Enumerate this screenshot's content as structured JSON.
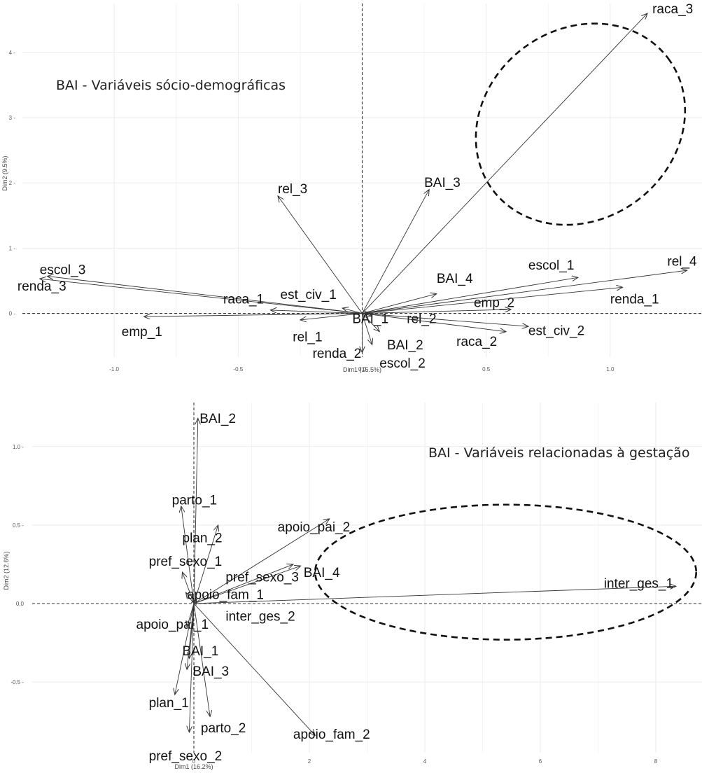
{
  "chart_data": [
    {
      "type": "scatter",
      "title": "BAI - Variáveis sócio-demográficas",
      "xlabel": "Dim1 (15.5%)",
      "ylabel": "Dim2 (9.5%)",
      "xlim": [
        -1.37,
        1.37
      ],
      "ylim": [
        -0.67,
        4.75
      ],
      "xticks": [
        -1.0,
        -0.5,
        0.0,
        0.5,
        1.0
      ],
      "xtick_labels": [
        "-1.0",
        "-0.5",
        "0.0",
        "0.5",
        "1.0"
      ],
      "yticks": [
        0,
        1,
        2,
        3,
        4
      ],
      "ytick_labels": [
        "0 -",
        "1 -",
        "2 -",
        "3 -",
        "4 -"
      ],
      "grid": true,
      "highlight_ellipse": {
        "cx": 0.88,
        "cy": 2.9,
        "rx": 0.65,
        "ry": 1.35,
        "angle_deg": -37
      },
      "vectors": [
        {
          "label": "raca_3",
          "x": 1.15,
          "y": 4.6,
          "lx": 1.17,
          "ly": 4.6
        },
        {
          "label": "BAI_3",
          "x": 0.27,
          "y": 1.9,
          "lx": 0.25,
          "ly": 1.94
        },
        {
          "label": "rel_3",
          "x": -0.34,
          "y": 1.8,
          "lx": -0.34,
          "ly": 1.84
        },
        {
          "label": "escol_3",
          "x": -1.27,
          "y": 0.57,
          "lx": -1.3,
          "ly": 0.6
        },
        {
          "label": "renda_3",
          "x": -1.3,
          "y": 0.53,
          "lx": -1.39,
          "ly": 0.35
        },
        {
          "label": "raca_1",
          "x": -0.37,
          "y": 0.05,
          "lx": -0.56,
          "ly": 0.15
        },
        {
          "label": "est_civ_1",
          "x": -0.08,
          "y": 0.08,
          "lx": -0.33,
          "ly": 0.22
        },
        {
          "label": "emp_1",
          "x": -0.88,
          "y": -0.05,
          "lx": -0.97,
          "ly": -0.35
        },
        {
          "label": "rel_1",
          "x": -0.25,
          "y": -0.1,
          "lx": -0.28,
          "ly": -0.43
        },
        {
          "label": "renda_2",
          "x": 0.0,
          "y": -0.6,
          "lx": -0.2,
          "ly": -0.68
        },
        {
          "label": "BAI_1",
          "x": 0.03,
          "y": 0.0,
          "lx": -0.04,
          "ly": -0.15
        },
        {
          "label": "rel_2",
          "x": 0.04,
          "y": -0.04,
          "lx": 0.18,
          "ly": -0.15
        },
        {
          "label": "BAI_2",
          "x": 0.07,
          "y": -0.28,
          "lx": 0.1,
          "ly": -0.55
        },
        {
          "label": "escol_2",
          "x": 0.04,
          "y": -0.48,
          "lx": 0.07,
          "ly": -0.83
        },
        {
          "label": "BAI_4",
          "x": 0.3,
          "y": 0.3,
          "lx": 0.3,
          "ly": 0.47
        },
        {
          "label": "escol_1",
          "x": 0.87,
          "y": 0.55,
          "lx": 0.67,
          "ly": 0.67
        },
        {
          "label": "rel_4",
          "x": 1.31,
          "y": 0.66,
          "lx": 1.23,
          "ly": 0.73
        },
        {
          "label": "emp_2",
          "x": 0.6,
          "y": 0.06,
          "lx": 0.45,
          "ly": 0.1
        },
        {
          "label": "renda_1",
          "x": 1.05,
          "y": 0.4,
          "lx": 1.0,
          "ly": 0.15
        },
        {
          "label": "est_civ_2",
          "x": 0.67,
          "y": -0.2,
          "lx": 0.67,
          "ly": -0.33
        },
        {
          "label": "raca_2",
          "x": 0.58,
          "y": -0.28,
          "lx": 0.38,
          "ly": -0.5
        }
      ]
    },
    {
      "type": "scatter",
      "title": "BAI - Variáveis relacionadas à gestação",
      "xlabel": "Dim1 (16.2%)",
      "ylabel": "Dim2 (12.6%)",
      "xlim": [
        -2.8,
        8.8
      ],
      "ylim": [
        -0.95,
        1.28
      ],
      "xticks": [
        0,
        2,
        4,
        6,
        8
      ],
      "xtick_labels": [
        "0",
        "2",
        "4",
        "6",
        "8"
      ],
      "yticks": [
        -0.5,
        0.0,
        0.5,
        1.0
      ],
      "ytick_labels": [
        "-0.5 -",
        "0.0",
        "0.5 -",
        "1.0 -"
      ],
      "grid": true,
      "highlight_ellipse": {
        "cx": 5.4,
        "cy": 0.2,
        "rx": 3.3,
        "ry": 0.43,
        "angle_deg": 0
      },
      "vectors": [
        {
          "label": "BAI_2",
          "x": 0.07,
          "y": 1.18,
          "lx": 0.1,
          "ly": 1.15
        },
        {
          "label": "parto_1",
          "x": -0.22,
          "y": 0.62,
          "lx": -0.38,
          "ly": 0.63
        },
        {
          "label": "plan_2",
          "x": 0.42,
          "y": 0.5,
          "lx": -0.2,
          "ly": 0.39
        },
        {
          "label": "pref_sexo_1",
          "x": -0.2,
          "y": 0.2,
          "lx": -0.78,
          "ly": 0.24
        },
        {
          "label": "apoio_pai_2",
          "x": 2.35,
          "y": 0.54,
          "lx": 1.45,
          "ly": 0.46
        },
        {
          "label": "pref_sexo_3",
          "x": 1.72,
          "y": 0.25,
          "lx": 0.55,
          "ly": 0.14
        },
        {
          "label": "BAI_4",
          "x": 1.85,
          "y": 0.24,
          "lx": 1.9,
          "ly": 0.17
        },
        {
          "label": "inter_ges_1",
          "x": 8.35,
          "y": 0.11,
          "lx": 7.1,
          "ly": 0.1
        },
        {
          "label": "apoio_fam_1",
          "x": -0.14,
          "y": 0.07,
          "lx": -0.12,
          "ly": 0.03
        },
        {
          "label": "inter_ges_2",
          "x": 0.05,
          "y": 0.03,
          "lx": 0.55,
          "ly": -0.11
        },
        {
          "label": "apoio_pai_1",
          "x": -0.12,
          "y": -0.15,
          "lx": -1.0,
          "ly": -0.16
        },
        {
          "label": "BAI_1",
          "x": -0.08,
          "y": -0.35,
          "lx": -0.2,
          "ly": -0.33
        },
        {
          "label": "BAI_3",
          "x": -0.12,
          "y": -0.42,
          "lx": -0.02,
          "ly": -0.46
        },
        {
          "label": "plan_1",
          "x": -0.33,
          "y": -0.58,
          "lx": -0.78,
          "ly": -0.66
        },
        {
          "label": "parto_2",
          "x": 0.28,
          "y": -0.72,
          "lx": 0.12,
          "ly": -0.82
        },
        {
          "label": "pref_sexo_2",
          "x": -0.08,
          "y": -0.82,
          "lx": -0.78,
          "ly": -1.0
        },
        {
          "label": "apoio_fam_2",
          "x": 2.1,
          "y": -0.84,
          "lx": 1.72,
          "ly": -0.86
        }
      ]
    }
  ]
}
